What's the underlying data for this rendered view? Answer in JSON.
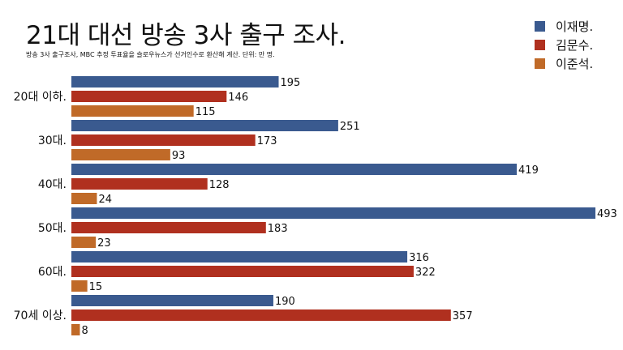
{
  "header": {
    "title": "21대 대선 방송 3사 출구 조사.",
    "subtitle": "방송 3사 출구조사, MBC 추정 투표율을 슬로우뉴스가 선거인수로 환산해 계산.  단위: 만 명."
  },
  "chart_data": {
    "type": "bar",
    "orientation": "horizontal",
    "title": "21대 대선 방송 3사 출구 조사.",
    "subtitle": "방송 3사 출구조사, MBC 추정 투표율을 슬로우뉴스가 선거인수로 환산해 계산.  단위: 만 명.",
    "categories": [
      "20대 이하.",
      "30대.",
      "40대.",
      "50대.",
      "60대.",
      "70세 이상."
    ],
    "series": [
      {
        "name": "이재명.",
        "color": "#3a5a8f",
        "values": [
          195,
          251,
          419,
          493,
          316,
          190
        ]
      },
      {
        "name": "김문수.",
        "color": "#b0301f",
        "values": [
          146,
          173,
          128,
          183,
          322,
          357
        ]
      },
      {
        "name": "이준석.",
        "color": "#c06a28",
        "values": [
          115,
          93,
          24,
          23,
          15,
          8
        ]
      }
    ],
    "xlim": [
      0,
      493
    ],
    "grid": false,
    "legend_position": "top-right",
    "data_labels": true
  }
}
